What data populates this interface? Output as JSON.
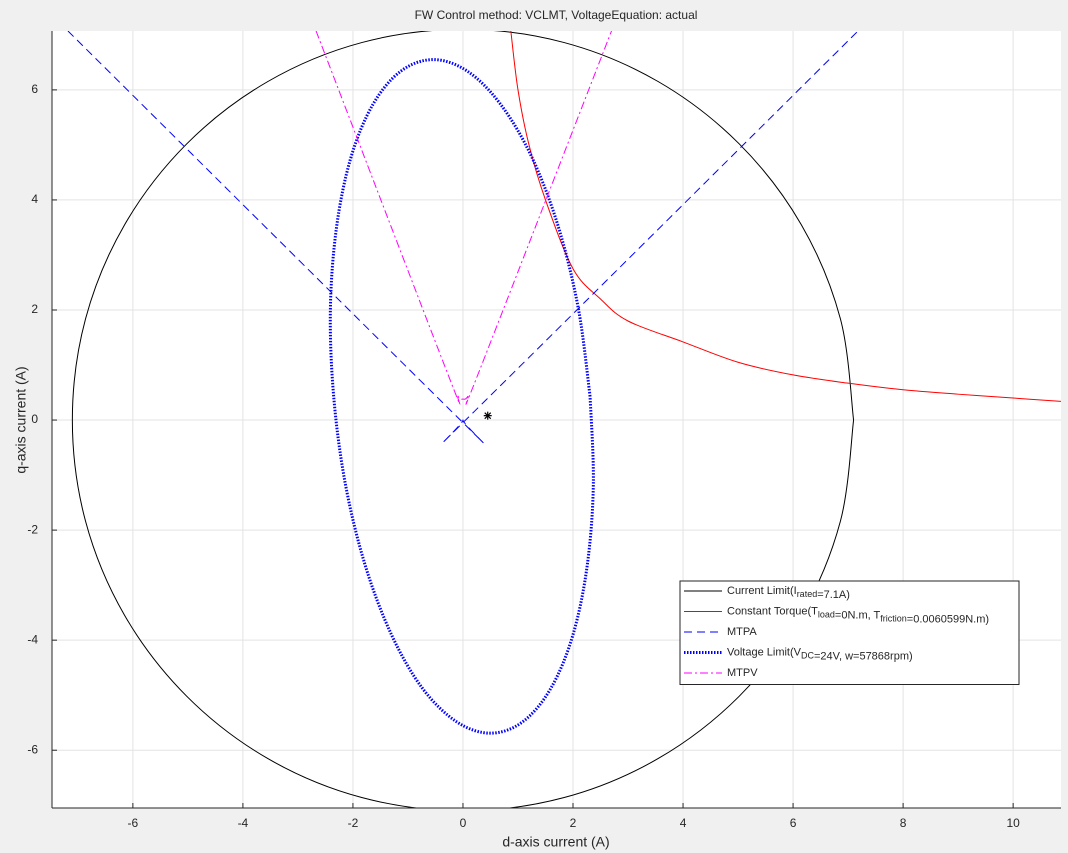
{
  "chart_data": {
    "type": "line",
    "title": "FW Control method: VCLMT, VoltageEquation: actual",
    "x_label": "d-axis current (A)",
    "y_label": "q-axis current (A)",
    "xlim": [
      -7.47,
      10.87
    ],
    "ylim": [
      -7.05,
      7.07
    ],
    "xticks": [
      -6,
      -4,
      -2,
      0,
      2,
      4,
      6,
      8,
      10
    ],
    "yticks": [
      -6,
      -4,
      -2,
      0,
      2,
      4,
      6
    ],
    "grid": true,
    "legend": "lower-right",
    "series": [
      {
        "name": "Current Limit(I_{rated}=7.1A)",
        "color": "#000000",
        "line_style": "-",
        "x": [
          7.1,
          6.86,
          6.15,
          5.02,
          3.55,
          1.84,
          0,
          -1.84,
          -3.55,
          -5.02,
          -6.15,
          -6.86,
          -7.1,
          -6.86,
          -6.15,
          -5.02,
          -3.55,
          -1.84,
          0,
          1.84,
          3.55,
          5.02,
          6.15,
          6.86,
          7.1
        ],
        "values": [
          0,
          1.84,
          3.55,
          5.02,
          6.15,
          6.86,
          7.1,
          6.86,
          6.15,
          5.02,
          3.55,
          1.84,
          0,
          -1.84,
          -3.55,
          -5.02,
          -6.15,
          -6.86,
          -7.1,
          -6.86,
          -6.15,
          -5.02,
          -3.55,
          -1.84,
          0
        ]
      },
      {
        "name": "Constant Torque(T_{load}=0N.m, T_{friction}=0.0060599N.m)",
        "color": "#ff0000",
        "line_style": "-",
        "x": [
          0.87,
          1.0,
          1.2,
          1.5,
          2.0,
          2.5,
          3.0,
          4.0,
          5.0,
          6.0,
          7.0,
          8.0,
          9.0,
          10.0,
          10.87
        ],
        "values": [
          7.07,
          6.0,
          5.0,
          4.0,
          2.75,
          2.2,
          1.8,
          1.42,
          1.05,
          0.82,
          0.67,
          0.55,
          0.47,
          0.4,
          0.34
        ]
      },
      {
        "name": "MTPA",
        "color": "#0000ff",
        "line_style": "--",
        "x": [
          -7.18,
          -0.2,
          0,
          0.2,
          7.18
        ],
        "values": [
          7.07,
          0.15,
          0,
          0.15,
          7.07
        ]
      },
      {
        "name": "Voltage Limit(V_{DC}=24V, w=57868rpm)",
        "color": "#0000ff",
        "line_style": ":",
        "x": [
          2.31,
          2.1,
          1.74,
          1.26,
          0.69,
          0.08,
          -0.54,
          -1.13,
          -1.64,
          -2.04,
          -2.3,
          -2.41,
          -2.35,
          -2.14,
          -1.78,
          -1.3,
          -0.74,
          -0.12,
          0.5,
          1.09,
          1.6,
          2.0,
          2.26,
          2.37,
          2.31
        ],
        "values": [
          0.43,
          2.01,
          3.49,
          4.76,
          5.73,
          6.34,
          6.55,
          6.34,
          5.73,
          4.76,
          3.49,
          2.01,
          0.43,
          -1.15,
          -2.63,
          -3.9,
          -4.87,
          -5.48,
          -5.69,
          -5.48,
          -4.87,
          -3.9,
          -2.63,
          -1.15,
          0.43
        ]
      },
      {
        "name": "MTPV",
        "color": "#ff00ff",
        "line_style": "-.",
        "x": [
          -2.67,
          -0.3,
          -0.1,
          0,
          0.1,
          0.3,
          2.7
        ],
        "values": [
          7.07,
          0.9,
          0.45,
          0.38,
          0.45,
          0.9,
          7.07
        ]
      }
    ],
    "marker": {
      "x": 0.45,
      "y": 0.08,
      "color": "#000000"
    }
  }
}
